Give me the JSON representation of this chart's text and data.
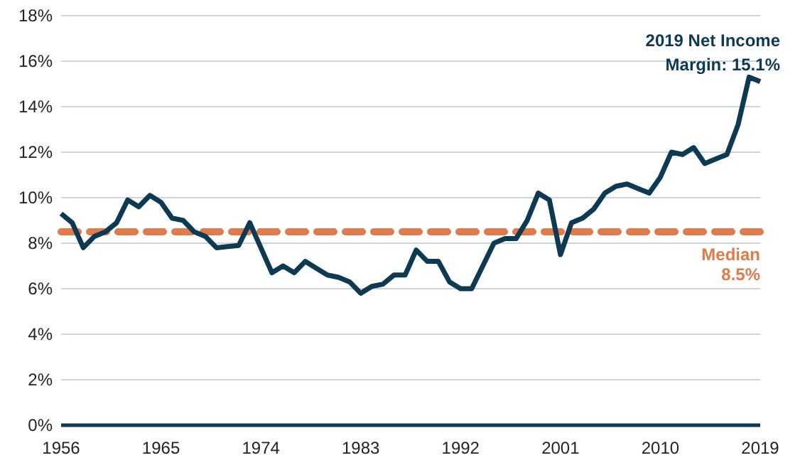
{
  "chart_data": {
    "type": "line",
    "x": [
      1956,
      1957,
      1958,
      1959,
      1960,
      1961,
      1962,
      1963,
      1964,
      1965,
      1966,
      1967,
      1968,
      1969,
      1970,
      1971,
      1972,
      1973,
      1974,
      1975,
      1976,
      1977,
      1978,
      1979,
      1980,
      1981,
      1982,
      1983,
      1984,
      1985,
      1986,
      1987,
      1988,
      1989,
      1990,
      1991,
      1992,
      1993,
      1994,
      1995,
      1996,
      1997,
      1998,
      1999,
      2000,
      2001,
      2002,
      2003,
      2004,
      2005,
      2006,
      2007,
      2008,
      2009,
      2010,
      2011,
      2012,
      2013,
      2014,
      2015,
      2016,
      2017,
      2018,
      2019
    ],
    "series": [
      {
        "color": "#0d3a52",
        "values": [
          9.3,
          8.9,
          7.8,
          8.3,
          8.5,
          8.9,
          9.9,
          9.6,
          10.1,
          9.8,
          9.1,
          9.0,
          8.5,
          8.3,
          7.8,
          7.85,
          7.9,
          8.9,
          7.8,
          6.7,
          7.0,
          6.7,
          7.2,
          6.9,
          6.6,
          6.5,
          6.3,
          5.8,
          6.1,
          6.2,
          6.6,
          6.6,
          7.7,
          7.2,
          7.2,
          6.3,
          6.0,
          6.0,
          7.0,
          8.0,
          8.2,
          8.2,
          9.0,
          10.2,
          9.9,
          7.5,
          8.9,
          9.1,
          9.5,
          10.2,
          10.5,
          10.6,
          10.4,
          10.2,
          10.9,
          12.0,
          11.9,
          12.2,
          11.5,
          11.7,
          11.9,
          13.2,
          15.3,
          15.1
        ]
      }
    ],
    "xlim": [
      1956,
      2019
    ],
    "xticks": [
      1956,
      1965,
      1974,
      1983,
      1992,
      2001,
      2010,
      2019
    ],
    "ylim": [
      0,
      18
    ],
    "yticks": [
      {
        "value": 0,
        "label": "0%"
      },
      {
        "value": 2,
        "label": "2%"
      },
      {
        "value": 4,
        "label": "4%"
      },
      {
        "value": 6,
        "label": "6%"
      },
      {
        "value": 8,
        "label": "8%"
      },
      {
        "value": 10,
        "label": "10%"
      },
      {
        "value": 12,
        "label": "12%"
      },
      {
        "value": 14,
        "label": "14%"
      },
      {
        "value": 16,
        "label": "16%"
      },
      {
        "value": 18,
        "label": "18%"
      }
    ],
    "grid": "y",
    "ref_lines": [
      {
        "axis": "y",
        "value": 8.5,
        "label": "Median\n8.5%",
        "color": "#e07b4c",
        "line_style": "dashed"
      }
    ],
    "annotations": [
      {
        "text": "2019 Net Income\nMargin: 15.1%",
        "x": 2019,
        "y": 15.1
      }
    ]
  }
}
